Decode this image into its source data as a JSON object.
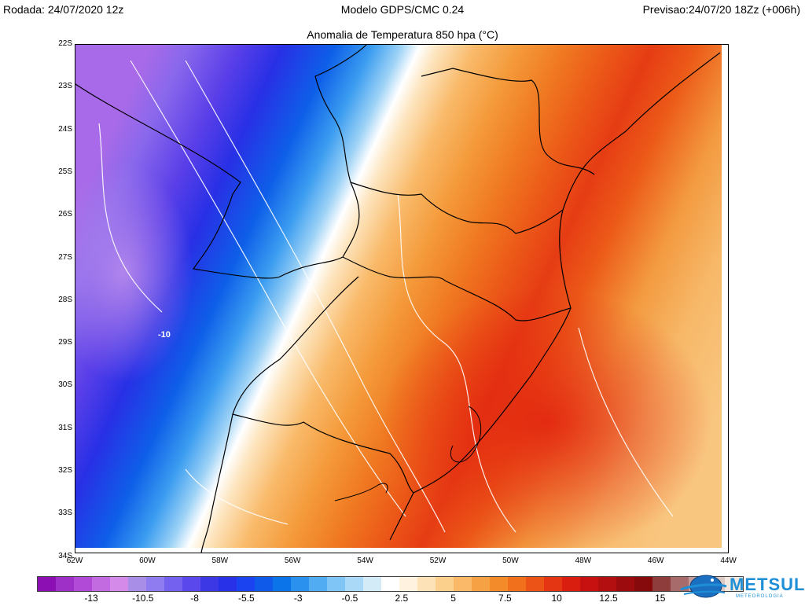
{
  "header": {
    "run": "Rodada: 24/07/2020 12z",
    "model": "Modelo GDPS/CMC 0.24",
    "forecast": "Previsao:24/07/20 18Zz (+006h)"
  },
  "map": {
    "title": "Anomalia de Temperatura 850 hpa (°C)",
    "contour_label": "-10",
    "lat_labels": [
      "22S",
      "23S",
      "24S",
      "25S",
      "26S",
      "27S",
      "28S",
      "29S",
      "30S",
      "31S",
      "32S",
      "33S",
      "34S"
    ],
    "lon_labels": [
      "62W",
      "60W",
      "58W",
      "56W",
      "54W",
      "52W",
      "50W",
      "48W",
      "46W",
      "44W"
    ]
  },
  "colorbar": {
    "colors": [
      "#8c0fb4",
      "#9e2fc7",
      "#b14ad6",
      "#c26ae0",
      "#d38ae9",
      "#a98ee8",
      "#8f7cf0",
      "#7561f0",
      "#5b48ec",
      "#3c38e6",
      "#2830e8",
      "#1b44f0",
      "#0f5ae8",
      "#0a74e8",
      "#2a91ee",
      "#52acf2",
      "#7fc5f5",
      "#aad8f7",
      "#d3ebf7",
      "#ffffff",
      "#fff3df",
      "#fde2b8",
      "#fbcf8c",
      "#f9b968",
      "#f7a145",
      "#f38b2a",
      "#f0701c",
      "#ec5316",
      "#e53613",
      "#d91e10",
      "#c71010",
      "#b30e10",
      "#9c0c0e",
      "#860a0c",
      "#8e3c3c",
      "#a86b6b",
      "#c29b9b",
      "#dcc9c4",
      "#f1e8e0"
    ],
    "labels": [
      "-13",
      "-10.5",
      "-8",
      "-5.5",
      "-3",
      "-0.5",
      "2.5",
      "5",
      "7.5",
      "10",
      "12.5",
      "15"
    ]
  },
  "logo": {
    "name": "METSUL",
    "tagline": "METEOROLOGIA"
  }
}
